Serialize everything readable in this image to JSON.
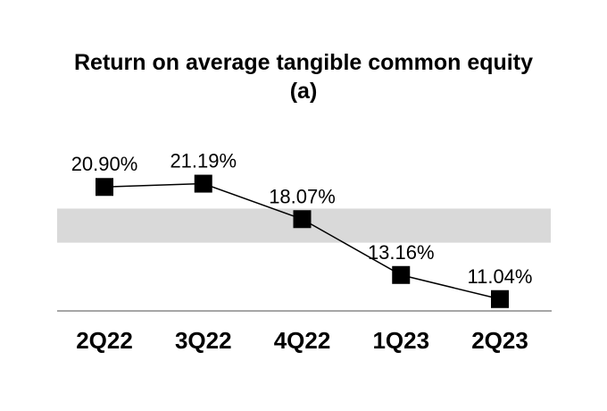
{
  "chart_data": {
    "type": "line",
    "title": "Return on average tangible common equity (a)",
    "categories": [
      "2Q22",
      "3Q22",
      "4Q22",
      "1Q23",
      "2Q23"
    ],
    "values": [
      20.9,
      21.19,
      18.07,
      13.16,
      11.04
    ],
    "data_labels": [
      "20.90%",
      "21.19%",
      "18.07%",
      "13.16%",
      "11.04%"
    ],
    "ylim": [
      10,
      22.5
    ],
    "grid": false,
    "legend": "none",
    "marker": "square",
    "marker_color": "#000000",
    "line_color": "#000000",
    "axis_line_color": "#a6a6a6",
    "band": {
      "from": 16,
      "to": 19,
      "color": "#d9d9d9"
    }
  }
}
